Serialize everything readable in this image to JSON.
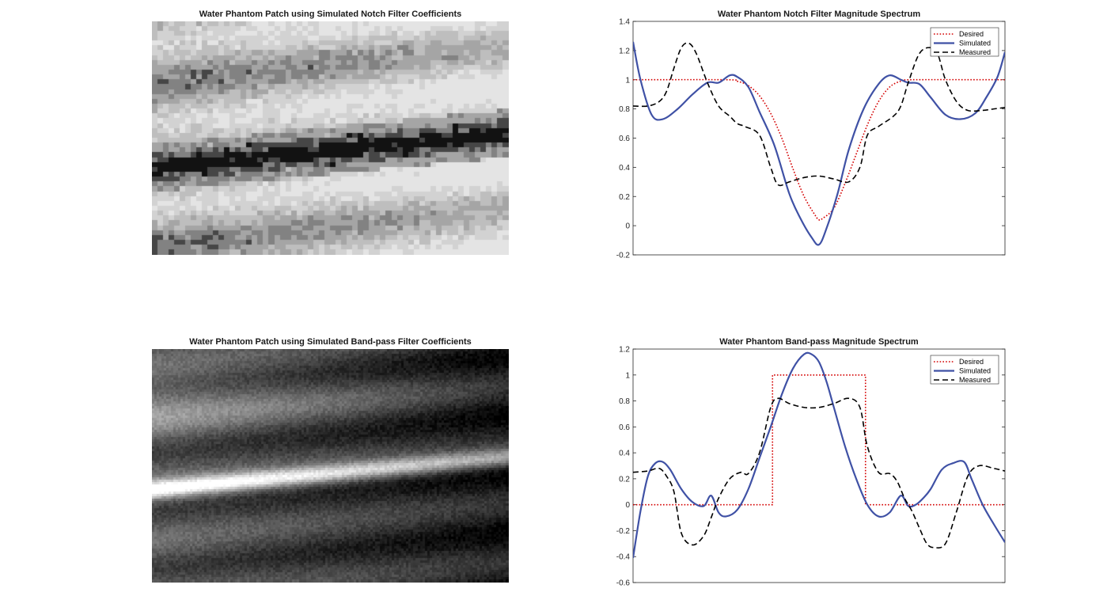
{
  "colors": {
    "desired": "#d40000",
    "simulated": "#3f51a5",
    "measured": "#000000",
    "axis": "#262626"
  },
  "images": [
    {
      "title": "Water Phantom Patch using Simulated Notch Filter Coefficients",
      "colormap": "gray",
      "style": "quantized"
    },
    {
      "title": "Water Phantom Patch using Simulated Band-pass Filter Coefficients",
      "colormap": "gray",
      "style": "smooth"
    }
  ],
  "chart_data": [
    {
      "type": "line",
      "title": "Water Phantom Notch Filter Magnitude Spectrum",
      "xlabel": "",
      "ylabel": "",
      "xlim": [
        0,
        1
      ],
      "ylim": [
        -0.2,
        1.4
      ],
      "yticks": [
        -0.2,
        0,
        0.2,
        0.4,
        0.6,
        0.8,
        1,
        1.2,
        1.4
      ],
      "grid": false,
      "legend_position": "top-right",
      "series": [
        {
          "name": "Desired",
          "style": "dotted",
          "x": [
            0,
            0.25,
            0.28,
            0.31,
            0.34,
            0.37,
            0.4,
            0.43,
            0.46,
            0.49,
            0.5,
            0.51,
            0.54,
            0.57,
            0.6,
            0.63,
            0.66,
            0.69,
            0.72,
            0.75,
            1
          ],
          "values": [
            1,
            1,
            0.99,
            0.96,
            0.89,
            0.77,
            0.6,
            0.39,
            0.2,
            0.07,
            0.04,
            0.05,
            0.12,
            0.29,
            0.49,
            0.69,
            0.85,
            0.95,
            0.99,
            1,
            1
          ]
        },
        {
          "name": "Simulated",
          "style": "solid",
          "x": [
            0,
            0.02,
            0.05,
            0.08,
            0.12,
            0.16,
            0.2,
            0.23,
            0.26,
            0.28,
            0.31,
            0.34,
            0.38,
            0.42,
            0.45,
            0.48,
            0.5,
            0.52,
            0.55,
            0.58,
            0.62,
            0.66,
            0.69,
            0.72,
            0.74,
            0.77,
            0.8,
            0.84,
            0.88,
            0.92,
            0.95,
            0.98,
            1
          ],
          "values": [
            1.26,
            1.0,
            0.76,
            0.73,
            0.8,
            0.9,
            0.98,
            0.98,
            1.03,
            1.02,
            0.95,
            0.78,
            0.55,
            0.22,
            0.05,
            -0.08,
            -0.13,
            -0.02,
            0.22,
            0.52,
            0.8,
            0.97,
            1.03,
            1.0,
            0.98,
            0.97,
            0.88,
            0.76,
            0.73,
            0.77,
            0.88,
            1.02,
            1.19
          ]
        },
        {
          "name": "Measured",
          "style": "dashed",
          "x": [
            0,
            0.04,
            0.07,
            0.09,
            0.11,
            0.13,
            0.15,
            0.17,
            0.2,
            0.23,
            0.26,
            0.28,
            0.3,
            0.34,
            0.37,
            0.39,
            0.42,
            0.46,
            0.5,
            0.54,
            0.58,
            0.61,
            0.63,
            0.66,
            0.7,
            0.72,
            0.74,
            0.77,
            0.8,
            0.82,
            0.84,
            0.87,
            0.9,
            0.94,
            0.97,
            1
          ],
          "values": [
            0.82,
            0.82,
            0.85,
            0.92,
            1.08,
            1.22,
            1.25,
            1.18,
            0.98,
            0.82,
            0.75,
            0.7,
            0.68,
            0.62,
            0.4,
            0.28,
            0.3,
            0.33,
            0.34,
            0.32,
            0.3,
            0.4,
            0.62,
            0.68,
            0.75,
            0.82,
            0.98,
            1.18,
            1.22,
            1.17,
            1.0,
            0.85,
            0.79,
            0.79,
            0.8,
            0.81
          ]
        }
      ]
    },
    {
      "type": "line",
      "title": "Water Phantom Band-pass Magnitude Spectrum",
      "xlabel": "",
      "ylabel": "",
      "xlim": [
        0,
        1
      ],
      "ylim": [
        -0.6,
        1.2
      ],
      "yticks": [
        -0.6,
        -0.4,
        -0.2,
        0,
        0.2,
        0.4,
        0.6,
        0.8,
        1,
        1.2
      ],
      "grid": false,
      "legend_position": "top-right",
      "series": [
        {
          "name": "Desired",
          "style": "dotted",
          "x": [
            0,
            0.375,
            0.375,
            0.625,
            0.625,
            1
          ],
          "values": [
            0,
            0,
            1,
            1,
            0,
            0
          ]
        },
        {
          "name": "Simulated",
          "style": "solid",
          "x": [
            0,
            0.02,
            0.04,
            0.06,
            0.08,
            0.1,
            0.13,
            0.16,
            0.19,
            0.21,
            0.23,
            0.25,
            0.28,
            0.31,
            0.34,
            0.37,
            0.4,
            0.43,
            0.46,
            0.48,
            0.5,
            0.52,
            0.54,
            0.57,
            0.6,
            0.63,
            0.66,
            0.69,
            0.72,
            0.74,
            0.76,
            0.78,
            0.8,
            0.83,
            0.86,
            0.89,
            0.91,
            0.94,
            0.97,
            1
          ],
          "values": [
            -0.41,
            -0.05,
            0.22,
            0.32,
            0.33,
            0.27,
            0.12,
            0.02,
            -0.01,
            0.07,
            -0.06,
            -0.09,
            -0.04,
            0.12,
            0.36,
            0.6,
            0.85,
            1.05,
            1.16,
            1.16,
            1.1,
            0.95,
            0.75,
            0.45,
            0.2,
            0.0,
            -0.09,
            -0.06,
            0.07,
            -0.01,
            0.0,
            0.05,
            0.12,
            0.27,
            0.32,
            0.33,
            0.2,
            0.0,
            -0.15,
            -0.29
          ]
        },
        {
          "name": "Measured",
          "style": "dashed",
          "x": [
            0,
            0.04,
            0.07,
            0.09,
            0.11,
            0.13,
            0.16,
            0.19,
            0.21,
            0.23,
            0.26,
            0.29,
            0.31,
            0.34,
            0.37,
            0.39,
            0.42,
            0.46,
            0.5,
            0.54,
            0.58,
            0.61,
            0.63,
            0.66,
            0.69,
            0.71,
            0.73,
            0.75,
            0.77,
            0.79,
            0.81,
            0.84,
            0.87,
            0.9,
            0.93,
            0.97,
            1
          ],
          "values": [
            0.25,
            0.26,
            0.28,
            0.22,
            0.1,
            -0.22,
            -0.31,
            -0.24,
            -0.1,
            0.05,
            0.2,
            0.25,
            0.24,
            0.4,
            0.75,
            0.82,
            0.78,
            0.75,
            0.75,
            0.78,
            0.82,
            0.75,
            0.45,
            0.25,
            0.24,
            0.18,
            0.05,
            -0.05,
            -0.18,
            -0.3,
            -0.33,
            -0.3,
            -0.05,
            0.22,
            0.3,
            0.28,
            0.26
          ]
        }
      ]
    }
  ]
}
